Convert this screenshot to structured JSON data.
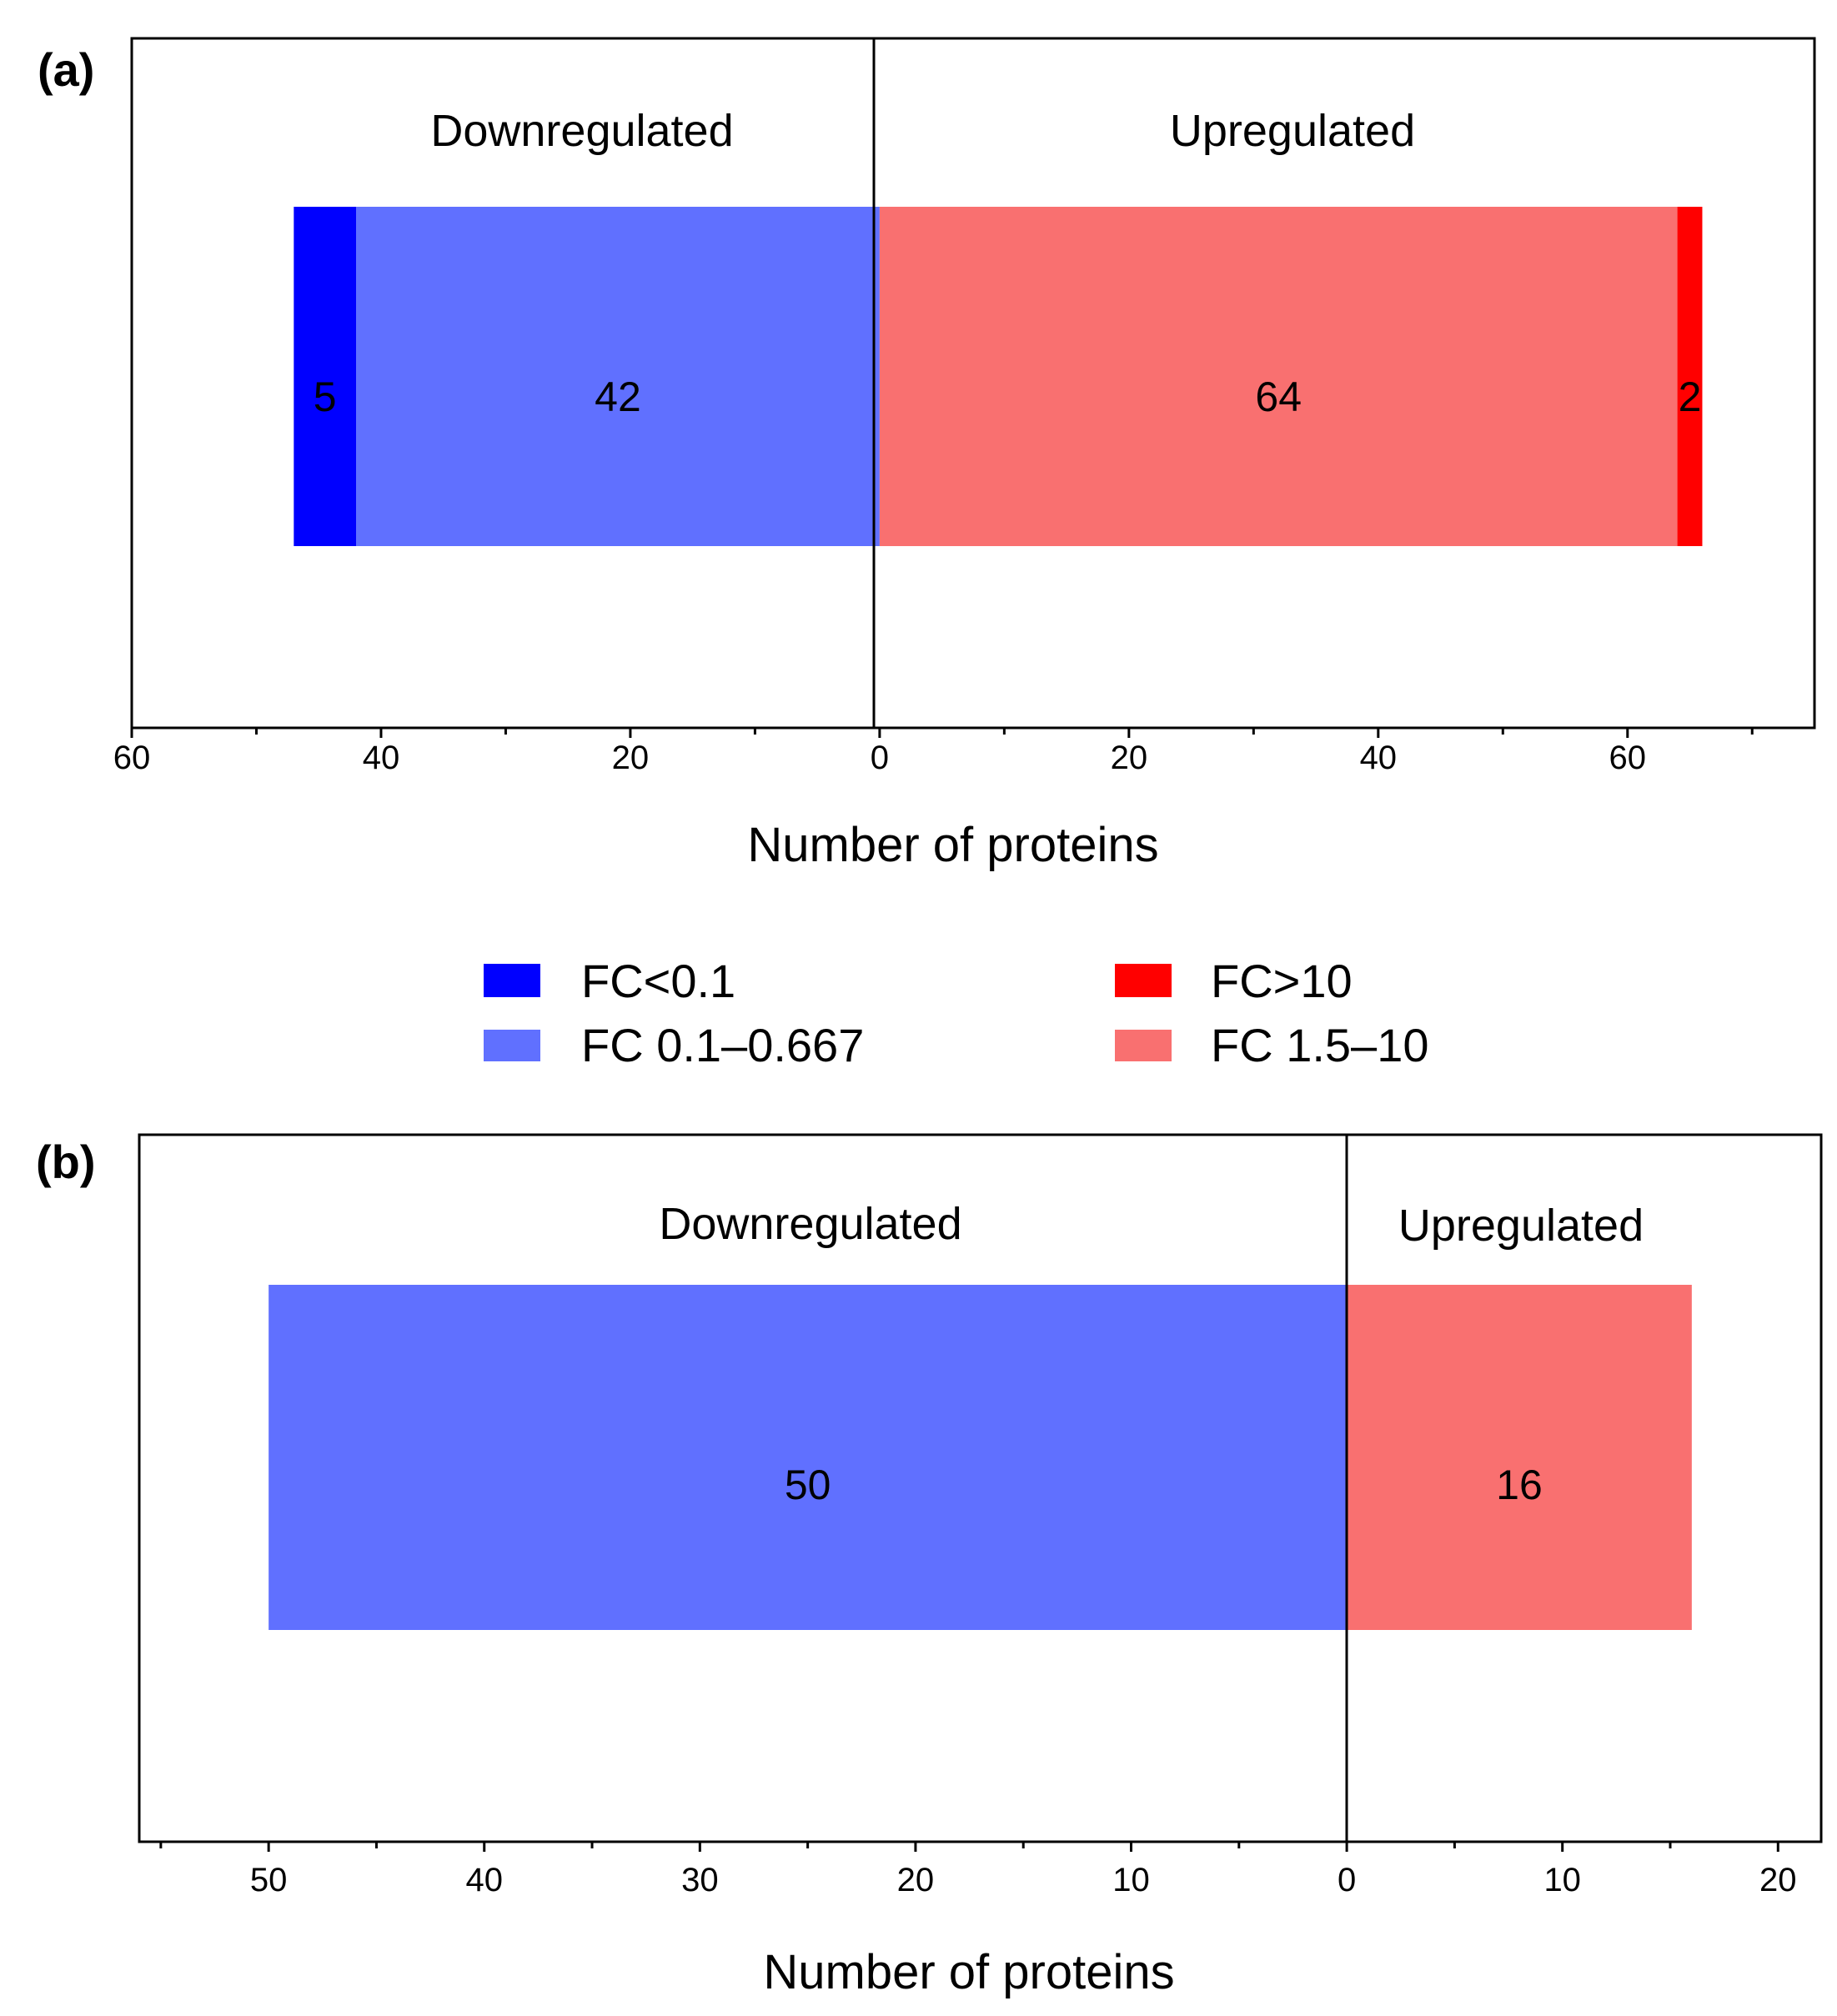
{
  "chart_data": [
    {
      "panel_label": "(a)",
      "type": "bar",
      "orientation": "horizontal-stacked-diverging",
      "xlabel": "Number of proteins",
      "xlim": [
        -60,
        75
      ],
      "tick_values": [
        -60,
        -40,
        -20,
        0,
        20,
        40,
        60
      ],
      "tick_labels": [
        "60",
        "40",
        "20",
        "0",
        "20",
        "40",
        "60"
      ],
      "minor_tick_values": [
        -50,
        -30,
        -10,
        10,
        30,
        50,
        70
      ],
      "down_label": "Downregulated",
      "up_label": "Upregulated",
      "series": [
        {
          "name": "FC 0.1–0.667",
          "value": -42,
          "label": "42",
          "color": "#6070FF"
        },
        {
          "name": "FC<0.1",
          "value": -5,
          "label": "5",
          "color": "#0000FF"
        },
        {
          "name": "FC 1.5–10",
          "value": 64,
          "label": "64",
          "color": "#F97070"
        },
        {
          "name": "FC>10",
          "value": 2,
          "label": "2",
          "color": "#FF0000"
        }
      ]
    },
    {
      "panel_label": "(b)",
      "type": "bar",
      "orientation": "horizontal-stacked-diverging",
      "xlabel": "Number of proteins",
      "xlim": [
        -56,
        22
      ],
      "tick_values": [
        -50,
        -40,
        -30,
        -20,
        -10,
        0,
        10,
        20
      ],
      "tick_labels": [
        "50",
        "40",
        "30",
        "20",
        "10",
        "0",
        "10",
        "20"
      ],
      "minor_tick_values": [
        -55,
        -45,
        -35,
        -25,
        -15,
        -5,
        5,
        15
      ],
      "down_label": "Downregulated",
      "up_label": "Upregulated",
      "series": [
        {
          "name": "FC 0.1–0.667",
          "value": -50,
          "label": "50",
          "color": "#6070FF"
        },
        {
          "name": "FC 1.5–10",
          "value": 16,
          "label": "16",
          "color": "#F97070"
        }
      ]
    }
  ],
  "legend": {
    "items": [
      {
        "label": "FC<0.1",
        "color": "#0000FF"
      },
      {
        "label": "FC>10",
        "color": "#FF0000"
      },
      {
        "label": "FC 0.1–0.667",
        "color": "#6070FF"
      },
      {
        "label": "FC 1.5–10",
        "color": "#F97070"
      }
    ]
  }
}
